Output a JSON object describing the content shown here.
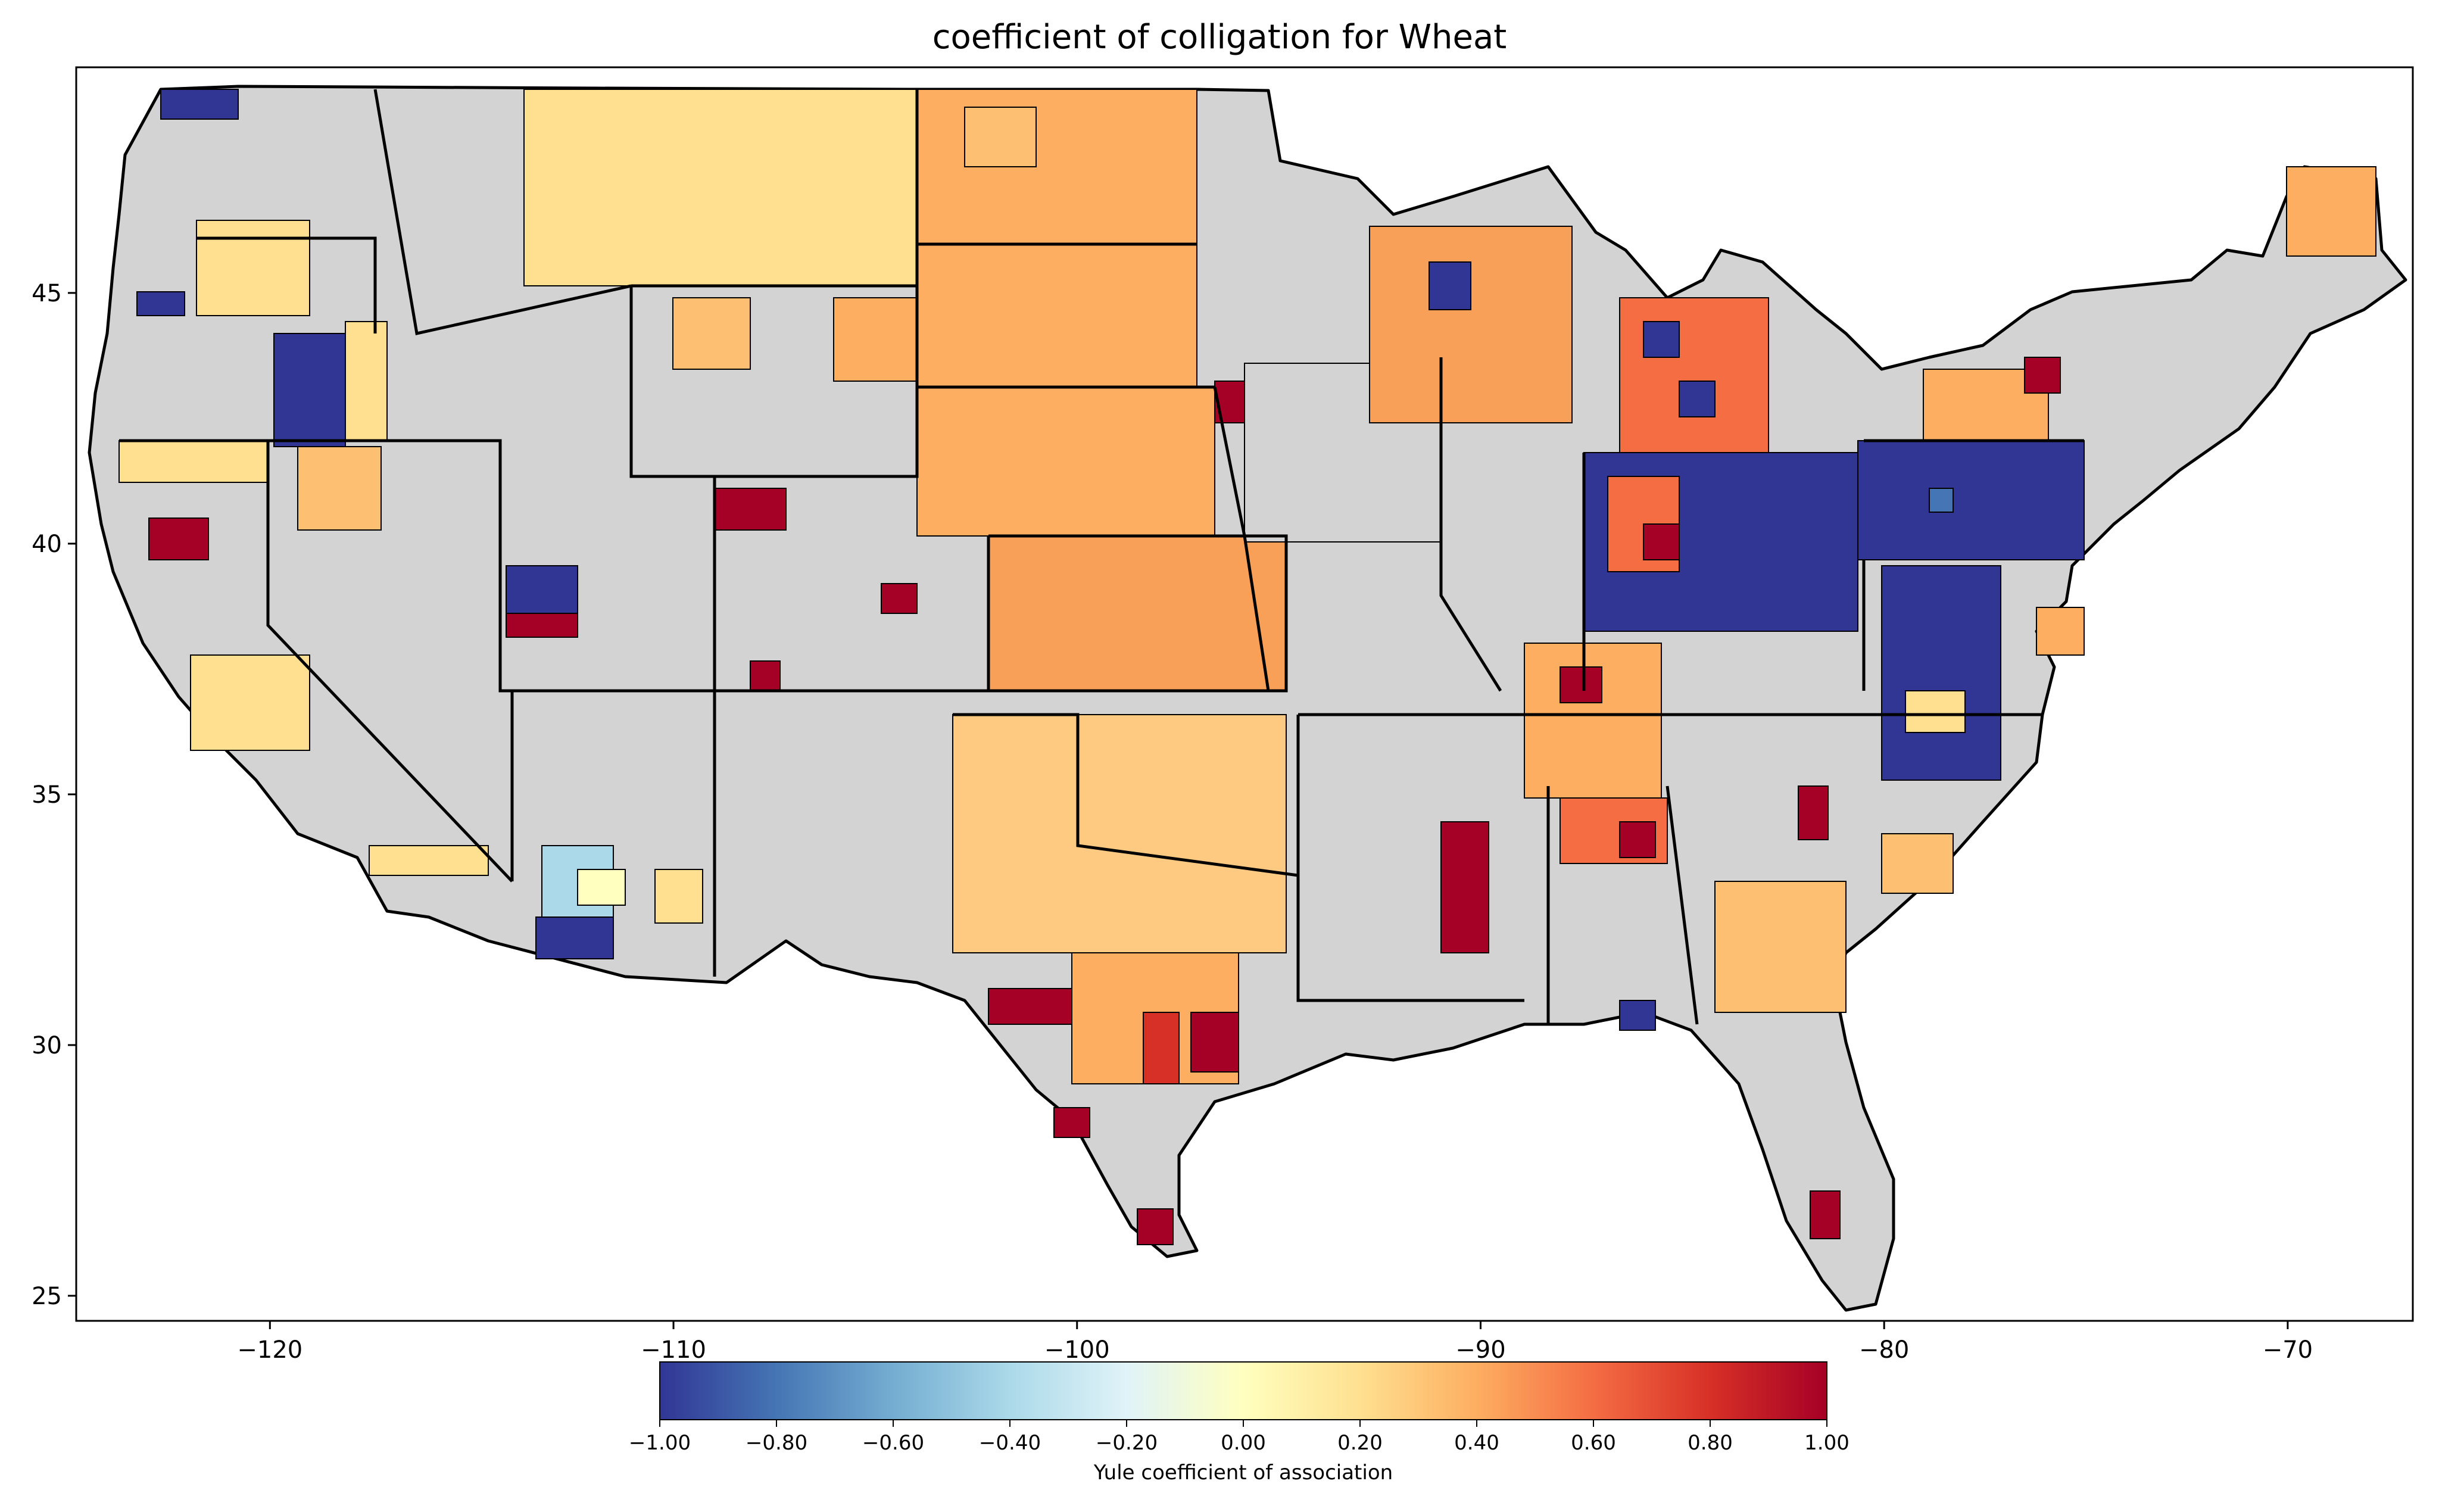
{
  "title": "coefficient of colligation for Wheat",
  "axes": {
    "x_ticks": [
      "−120",
      "−110",
      "−100",
      "−90",
      "−80",
      "−70"
    ],
    "x_values": [
      -120,
      -110,
      -100,
      -90,
      -80,
      -70
    ],
    "y_ticks": [
      "25",
      "30",
      "35",
      "40",
      "45"
    ],
    "y_values": [
      25,
      30,
      35,
      40,
      45
    ],
    "xlim": [
      -124.8,
      -66.9
    ],
    "ylim": [
      24.5,
      49.5
    ]
  },
  "colorbar": {
    "label": "Yule coefficient of association",
    "ticks": [
      "−1.00",
      "−0.80",
      "−0.60",
      "−0.40",
      "−0.20",
      "0.00",
      "0.20",
      "0.40",
      "0.60",
      "0.80",
      "1.00"
    ],
    "values": [
      -1.0,
      -0.8,
      -0.6,
      -0.4,
      -0.2,
      0.0,
      0.2,
      0.4,
      0.6,
      0.8,
      1.0
    ],
    "range": [
      -1.0,
      1.0
    ],
    "colormap_stops": [
      "#313695",
      "#4575b4",
      "#74add1",
      "#abd9e9",
      "#e0f3f8",
      "#ffffbf",
      "#fee090",
      "#fdae61",
      "#f46d43",
      "#d73027",
      "#a50026"
    ]
  },
  "colors": {
    "no_data": "#d3d3d3",
    "county_border": "#000000"
  }
}
